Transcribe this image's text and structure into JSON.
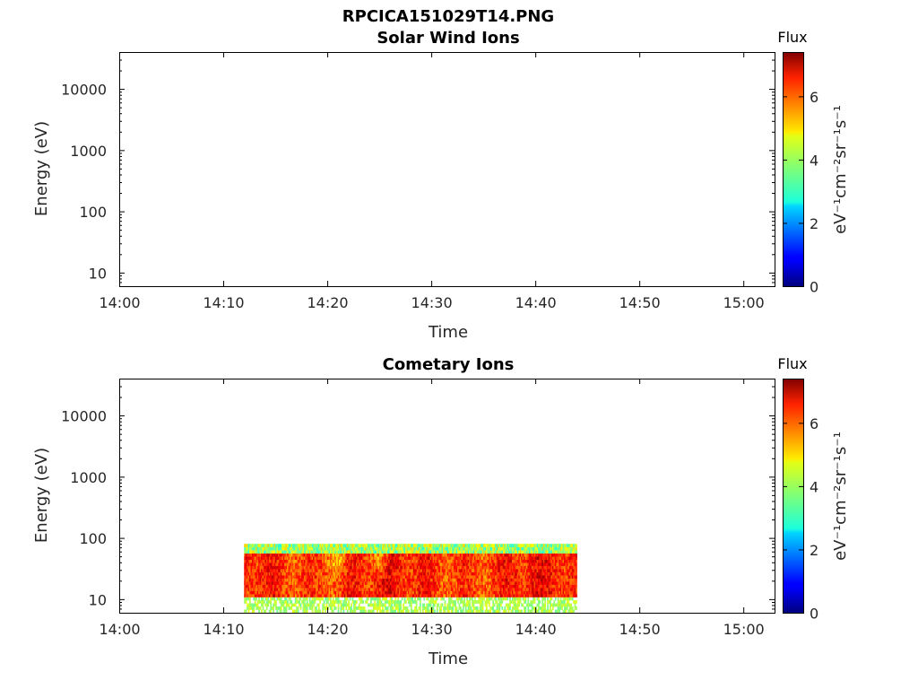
{
  "figure": {
    "title": "RPCICA151029T14.PNG",
    "colormap": "jet"
  },
  "chart_data": [
    {
      "type": "heatmap",
      "title": "Solar Wind Ions",
      "xlabel": "Time",
      "ylabel": "Energy (eV)",
      "x_ticks": [
        "14:00",
        "14:10",
        "14:20",
        "14:30",
        "14:40",
        "14:50",
        "15:00"
      ],
      "y_scale": "log",
      "ylim": [
        6,
        40000
      ],
      "y_ticks": [
        {
          "value": 10,
          "label": "10"
        },
        {
          "value": 100,
          "label": "100"
        },
        {
          "value": 1000,
          "label": "1000"
        },
        {
          "value": 10000,
          "label": "10000"
        }
      ],
      "xlim": [
        "14:00",
        "15:03"
      ],
      "data": [],
      "colorbar": {
        "title": "Flux",
        "unit_label": "eV⁻¹cm⁻²sr⁻¹s⁻¹",
        "range": [
          0,
          7.4
        ],
        "ticks": [
          "0",
          "2",
          "4",
          "6"
        ]
      }
    },
    {
      "type": "heatmap",
      "title": "Cometary Ions",
      "xlabel": "Time",
      "ylabel": "Energy (eV)",
      "x_ticks": [
        "14:00",
        "14:10",
        "14:20",
        "14:30",
        "14:40",
        "14:50",
        "15:00"
      ],
      "y_scale": "log",
      "ylim": [
        6,
        40000
      ],
      "y_ticks": [
        {
          "value": 10,
          "label": "10"
        },
        {
          "value": 100,
          "label": "100"
        },
        {
          "value": 1000,
          "label": "1000"
        },
        {
          "value": 10000,
          "label": "10000"
        }
      ],
      "xlim": [
        "14:00",
        "15:03"
      ],
      "data": {
        "time_start": "14:12",
        "time_end": "14:44",
        "energy_min": 6,
        "energy_max": 80,
        "dense_flux_range": [
          5.5,
          6.8
        ],
        "low_energy_flux_range": [
          3.5,
          4.5
        ],
        "upper_edge_flux_range": [
          3.0,
          5.0
        ],
        "low_flux_intervals": [
          "14:20–14:22",
          "14:24–14:26"
        ]
      },
      "colorbar": {
        "title": "Flux",
        "unit_label": "eV⁻¹cm⁻²sr⁻¹s⁻¹",
        "range": [
          0,
          7.4
        ],
        "ticks": [
          "0",
          "2",
          "4",
          "6"
        ]
      }
    }
  ]
}
